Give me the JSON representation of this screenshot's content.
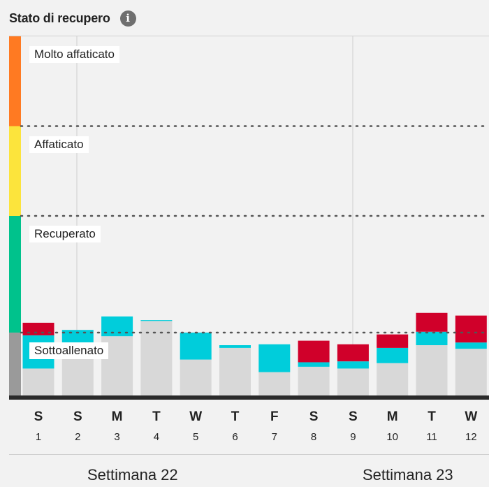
{
  "header": {
    "title": "Stato di recupero",
    "info_icon": "info-icon",
    "info_glyph": "i"
  },
  "colors": {
    "very_fatigued": "#ff7a22",
    "fatigued": "#fce43c",
    "recovered": "#00c28c",
    "undertrained": "#9a9a9a",
    "bar_base": "#d8d8d8",
    "bar_cyan": "#00cddb",
    "bar_red": "#d0002a",
    "baseline": "#2a2a2a"
  },
  "chart_data": {
    "type": "bar",
    "stacked": true,
    "zones": [
      {
        "label": "Molto affaticato",
        "from": 300,
        "to": 400
      },
      {
        "label": "Affaticato",
        "from": 200,
        "to": 300
      },
      {
        "label": "Recuperato",
        "from": 70,
        "to": 200
      },
      {
        "label": "Sottoallenato",
        "from": 0,
        "to": 70
      }
    ],
    "ylim": [
      0,
      400
    ],
    "categories": [
      {
        "letter": "S",
        "num": "1"
      },
      {
        "letter": "S",
        "num": "2"
      },
      {
        "letter": "M",
        "num": "3"
      },
      {
        "letter": "T",
        "num": "4"
      },
      {
        "letter": "W",
        "num": "5"
      },
      {
        "letter": "T",
        "num": "6"
      },
      {
        "letter": "F",
        "num": "7"
      },
      {
        "letter": "S",
        "num": "8"
      },
      {
        "letter": "S",
        "num": "9"
      },
      {
        "letter": "M",
        "num": "10"
      },
      {
        "letter": "T",
        "num": "11"
      },
      {
        "letter": "W",
        "num": "12"
      }
    ],
    "series": [
      {
        "color": "bar_base",
        "values": [
          30,
          57,
          66,
          83,
          40,
          53,
          26,
          32,
          30,
          36,
          56,
          52
        ]
      },
      {
        "color": "bar_cyan",
        "values": [
          37,
          16,
          22,
          1,
          30,
          3,
          31,
          5,
          8,
          17,
          15,
          7
        ]
      },
      {
        "color": "bar_red",
        "values": [
          14,
          0,
          0,
          0,
          0,
          0,
          0,
          24,
          19,
          15,
          21,
          30
        ]
      }
    ],
    "weeks": [
      {
        "label": "Settimana 22",
        "start_index": 0
      },
      {
        "label": "Settimana 23",
        "start_index": 8
      }
    ]
  }
}
